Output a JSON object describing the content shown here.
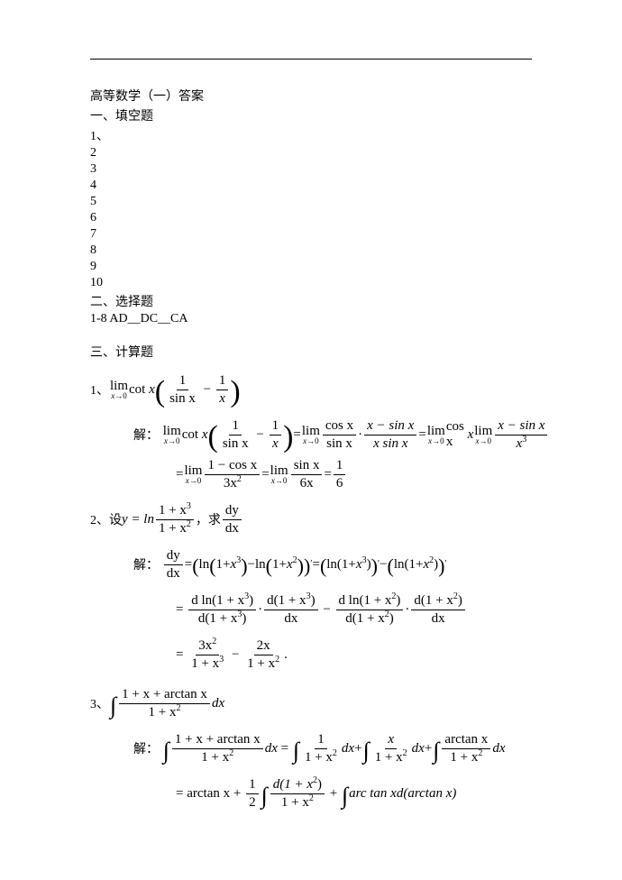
{
  "header": {
    "title": "高等数学（一）答案",
    "section1": "一、填空题",
    "numbers": [
      "1、",
      "2",
      "3",
      "4",
      "5",
      "6",
      "7",
      "8",
      "9",
      "10"
    ],
    "section2": "二、选择题",
    "mc_answers": "1-8 AD__DC__CA",
    "section3": "三、计算题"
  },
  "p1": {
    "label": "1、",
    "cot": "cot",
    "x": "x",
    "sinx": "sin x",
    "one": "1",
    "jie": "解：",
    "cosx": "cos x",
    "xminsinx": "x − sin x",
    "xsinx": "x sin x",
    "x3": "x",
    "x3sup": "3",
    "eq": "=",
    "oneminuscos": "1 − cos x",
    "three_x2": "3x",
    "three_x2_sup": "2",
    "sixx": "6x",
    "six": "6"
  },
  "p2": {
    "label": "2、",
    "let": "设 ",
    "y_eq": "y = ln",
    "num": "1 + x",
    "num_sup": "3",
    "den": "1 + x",
    "den_sup": "2",
    "comma": "，求",
    "dy": "dy",
    "dx": "dx",
    "jie": "解：",
    "ln_open": "ln",
    "minus": "−",
    "prime": "′",
    "dln": "d ln(1 + x",
    "d_open": "d(1 + x",
    "close": ")",
    "dot": "·",
    "result_num1": "3x",
    "r1_sup": "2",
    "result_den1": "1 + x",
    "rd1_sup": "3",
    "result_num2": "2x",
    "result_den2": "1 + x",
    "rd2_sup": "2",
    "period": "."
  },
  "p3": {
    "label": "3、",
    "num": "1 + x + arctan x",
    "den": "1 + x",
    "den_sup": "2",
    "dx": "dx",
    "jie": "解：",
    "one": "1",
    "x": "x",
    "arctanx": "arctan x",
    "arctan_x": "arctan x",
    "plus": "+",
    "half_num": "1",
    "half_den": "2",
    "dnum": "d(1 + x",
    "dnum_sup": "2",
    "dnum_close": ")",
    "arc_tan": "arc tan x",
    "darctan": "d(arctan x)"
  },
  "colors": {
    "text": "#000000",
    "bg": "#ffffff",
    "rule": "#000000"
  },
  "typography": {
    "body_font": "SimSun/serif",
    "math_font": "Times New Roman",
    "body_size_pt": 10.5,
    "math_size_pt": 11
  }
}
